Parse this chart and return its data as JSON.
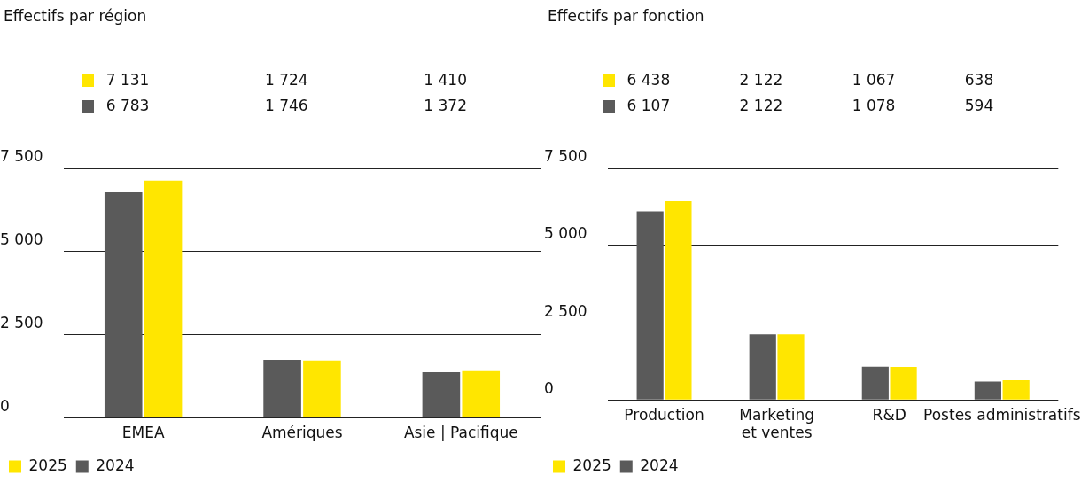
{
  "chart_data": [
    {
      "type": "bar",
      "title": "Effectifs par région",
      "categories": [
        "EMEA",
        "Amériques",
        "Asie | Pacifique"
      ],
      "series": [
        {
          "name": "2024",
          "color": "#5a5a5a",
          "values": [
            6783,
            1746,
            1372
          ],
          "value_labels": [
            "6 783",
            "1 746",
            "1 372"
          ]
        },
        {
          "name": "2025",
          "color": "#ffe600",
          "values": [
            7131,
            1724,
            1410
          ],
          "value_labels": [
            "7 131",
            "1 724",
            "1 410"
          ]
        }
      ],
      "ylim": [
        0,
        7500
      ],
      "yticks": [
        0,
        {
          "value": 2500,
          "label": "2 500"
        },
        {
          "value": 5000,
          "label": "5 000"
        },
        {
          "value": 7500,
          "label": "7 500"
        }
      ],
      "grid": "y",
      "legend": "bottom left"
    },
    {
      "type": "bar",
      "title": "Effectifs par fonction",
      "categories": [
        "Production",
        "Marketing et ventes",
        "R&D",
        "Postes administratifs"
      ],
      "series": [
        {
          "name": "2024",
          "color": "#5a5a5a",
          "values": [
            6107,
            2122,
            1078,
            594
          ],
          "value_labels": [
            "6 107",
            "2 122",
            "1 078",
            "594"
          ]
        },
        {
          "name": "2025",
          "color": "#ffe600",
          "values": [
            6438,
            2122,
            1067,
            638
          ],
          "value_labels": [
            "6 438",
            "2 122",
            "1 067",
            "638"
          ]
        }
      ],
      "ylim": [
        0,
        7500
      ],
      "yticks": [
        0,
        {
          "value": 2500,
          "label": "2 500"
        },
        {
          "value": 5000,
          "label": "5 000"
        },
        {
          "value": 7500,
          "label": "7 500"
        }
      ],
      "grid": "y",
      "legend": "bottom left"
    }
  ]
}
